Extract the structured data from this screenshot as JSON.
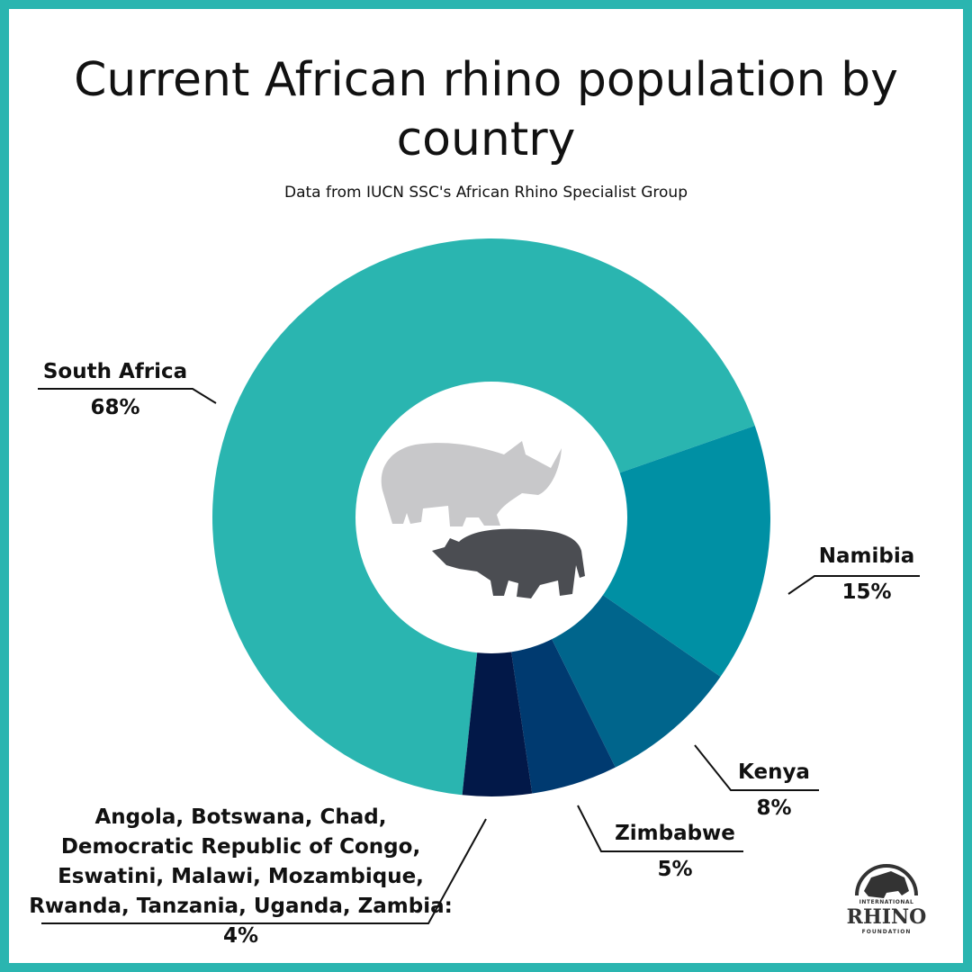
{
  "chart_data": {
    "type": "donut",
    "title": "Current African rhino population by country",
    "subtitle": "Data from IUCN SSC's African Rhino Specialist Group",
    "categories": [
      "South Africa",
      "Namibia",
      "Kenya",
      "Zimbabwe",
      "Angola, Botswana, Chad, Democratic Republic of Congo, Eswatini, Malawi, Mozambique, Rwanda, Tanzania, Uganda, Zambia:"
    ],
    "values": [
      68,
      15,
      8,
      5,
      4
    ],
    "value_labels": [
      "68%",
      "15%",
      "8%",
      "5%",
      "4%"
    ],
    "colors": [
      "#2ab5b0",
      "#0090a4",
      "#00658c",
      "#003a70",
      "#021848"
    ]
  },
  "logo": {
    "top": "INTERNATIONAL",
    "name": "RHINO",
    "bottom": "FOUNDATION"
  }
}
